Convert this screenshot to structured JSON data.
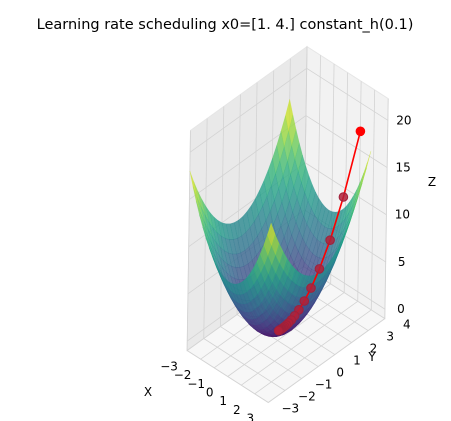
{
  "chart_data": {
    "type": "surface3d",
    "title": "Learning rate scheduling x0=[1. 4.] constant_h(0.1)",
    "xlabel": "X",
    "ylabel": "Y",
    "zlabel": "Z",
    "xlim": [
      -3,
      3
    ],
    "ylim": [
      -3,
      4
    ],
    "zlim": [
      -1,
      22.3
    ],
    "x_ticks": [
      "−3",
      "−2",
      "−1",
      "0",
      "1",
      "2",
      "3"
    ],
    "y_ticks": [
      "−3",
      "−2",
      "−1",
      "0",
      "1",
      "2",
      "3",
      "4"
    ],
    "z_ticks": [
      "0",
      "5",
      "10",
      "15",
      "20"
    ],
    "grid": true,
    "surface": {
      "function": "z = x^2 + y^2",
      "colormap": "viridis",
      "alpha": 0.6
    },
    "path": {
      "color": "#ff0000",
      "marker_color": "#ff0000",
      "points": [
        {
          "x": 1.0,
          "y": 4.0,
          "z": 17.0
        },
        {
          "x": 0.8,
          "y": 3.2,
          "z": 10.88
        },
        {
          "x": 0.64,
          "y": 2.56,
          "z": 6.96
        },
        {
          "x": 0.512,
          "y": 2.048,
          "z": 4.46
        },
        {
          "x": 0.41,
          "y": 1.638,
          "z": 2.85
        },
        {
          "x": 0.328,
          "y": 1.311,
          "z": 1.83
        },
        {
          "x": 0.262,
          "y": 1.049,
          "z": 1.17
        },
        {
          "x": 0.21,
          "y": 0.839,
          "z": 0.75
        },
        {
          "x": 0.168,
          "y": 0.671,
          "z": 0.48
        },
        {
          "x": 0.134,
          "y": 0.537,
          "z": 0.31
        },
        {
          "x": 0.107,
          "y": 0.429,
          "z": 0.2
        },
        {
          "x": 0.086,
          "y": 0.344,
          "z": 0.13
        },
        {
          "x": 0.069,
          "y": 0.275,
          "z": 0.08
        },
        {
          "x": 0.055,
          "y": 0.22,
          "z": 0.05
        },
        {
          "x": 0.044,
          "y": 0.176,
          "z": 0.03
        },
        {
          "x": 0.035,
          "y": 0.141,
          "z": 0.02
        },
        {
          "x": 0.028,
          "y": 0.113,
          "z": 0.01
        },
        {
          "x": 0.023,
          "y": 0.09,
          "z": 0.01
        },
        {
          "x": 0.018,
          "y": 0.072,
          "z": 0.01
        },
        {
          "x": 0.014,
          "y": 0.058,
          "z": 0.0
        },
        {
          "x": 0.012,
          "y": 0.046,
          "z": 0.0
        }
      ]
    }
  }
}
